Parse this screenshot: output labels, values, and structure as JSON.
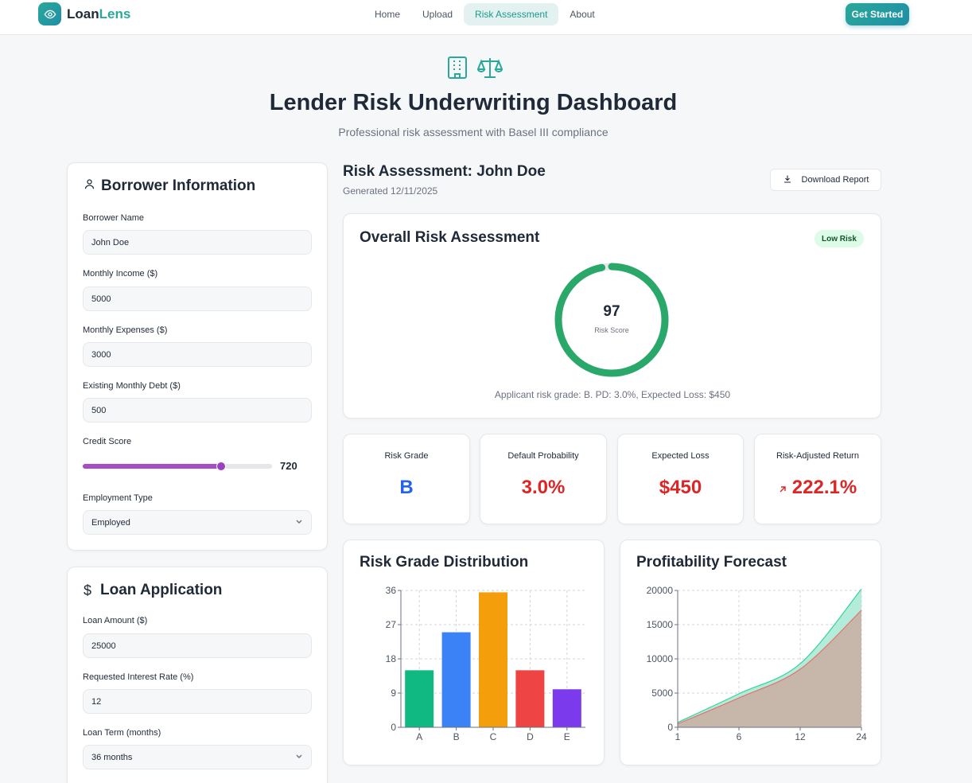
{
  "nav": {
    "brand_part1": "Loan",
    "brand_part2": "Lens",
    "links": [
      {
        "label": "Home",
        "active": false
      },
      {
        "label": "Upload",
        "active": false
      },
      {
        "label": "Risk Assessment",
        "active": true
      },
      {
        "label": "About",
        "active": false
      }
    ],
    "cta": "Get Started",
    "brand_color": "#2aa89a"
  },
  "hero": {
    "title": "Lender Risk Underwriting Dashboard",
    "subtitle": "Professional risk assessment with Basel III compliance",
    "icons": [
      "building-icon",
      "scale-icon"
    ]
  },
  "borrower": {
    "title": "Borrower Information",
    "name_label": "Borrower Name",
    "name_value": "John Doe",
    "income_label": "Monthly Income ($)",
    "income_value": "5000",
    "expenses_label": "Monthly Expenses ($)",
    "expenses_value": "3000",
    "debt_label": "Existing Monthly Debt ($)",
    "debt_value": "500",
    "credit_label": "Credit Score",
    "credit_value": "720",
    "credit_slider_fraction": 0.73,
    "employment_label": "Employment Type",
    "employment_value": "Employed"
  },
  "loan": {
    "title": "Loan Application",
    "amount_label": "Loan Amount ($)",
    "amount_value": "25000",
    "rate_label": "Requested Interest Rate (%)",
    "rate_value": "12",
    "term_label": "Loan Term (months)",
    "term_value": "36 months"
  },
  "assessment": {
    "title": "Risk Assessment: John Doe",
    "generated": "Generated 12/11/2025",
    "download": "Download Report",
    "overall_title": "Overall Risk Assessment",
    "badge": "Low Risk",
    "score": "97",
    "score_fraction": 0.97,
    "score_label": "Risk Score",
    "summary": "Applicant risk grade: B. PD: 3.0%, Expected Loss: $450",
    "ring_color": "#2aa86a"
  },
  "metrics": [
    {
      "label": "Risk Grade",
      "value": "B",
      "color": "#2563eb",
      "icon": ""
    },
    {
      "label": "Default Probability",
      "value": "3.0%",
      "color": "#dc2626",
      "icon": ""
    },
    {
      "label": "Expected Loss",
      "value": "$450",
      "color": "#dc2626",
      "icon": ""
    },
    {
      "label": "Risk-Adjusted Return",
      "value": "222.1%",
      "color": "#dc2626",
      "icon": "arrow-up-right-icon"
    }
  ],
  "chart_data": [
    {
      "type": "bar",
      "title": "Risk Grade Distribution",
      "categories": [
        "A",
        "B",
        "C",
        "D",
        "E"
      ],
      "values": [
        15,
        25,
        35.5,
        15,
        10
      ],
      "colors": [
        "#10b981",
        "#3b82f6",
        "#f59e0b",
        "#ef4444",
        "#7c3aed"
      ],
      "yticks": [
        "0",
        "9",
        "18",
        "27",
        "36"
      ],
      "ylim": [
        0,
        36
      ],
      "grid": true
    },
    {
      "type": "area",
      "title": "Profitability Forecast",
      "x": [
        1,
        6,
        12,
        24
      ],
      "xticks": [
        "1",
        "6",
        "12",
        "24"
      ],
      "yticks": [
        "0",
        "5000",
        "10000",
        "15000",
        "20000"
      ],
      "ylim": [
        0,
        20000
      ],
      "grid": true,
      "series": [
        {
          "values": [
            700,
            4900,
            9300,
            20200
          ],
          "color": "#34d399",
          "fill": "#a7e9d3"
        },
        {
          "values": [
            500,
            4300,
            8500,
            17100
          ],
          "color": "#e2746f",
          "fill": "#c8b3a8"
        }
      ]
    }
  ]
}
